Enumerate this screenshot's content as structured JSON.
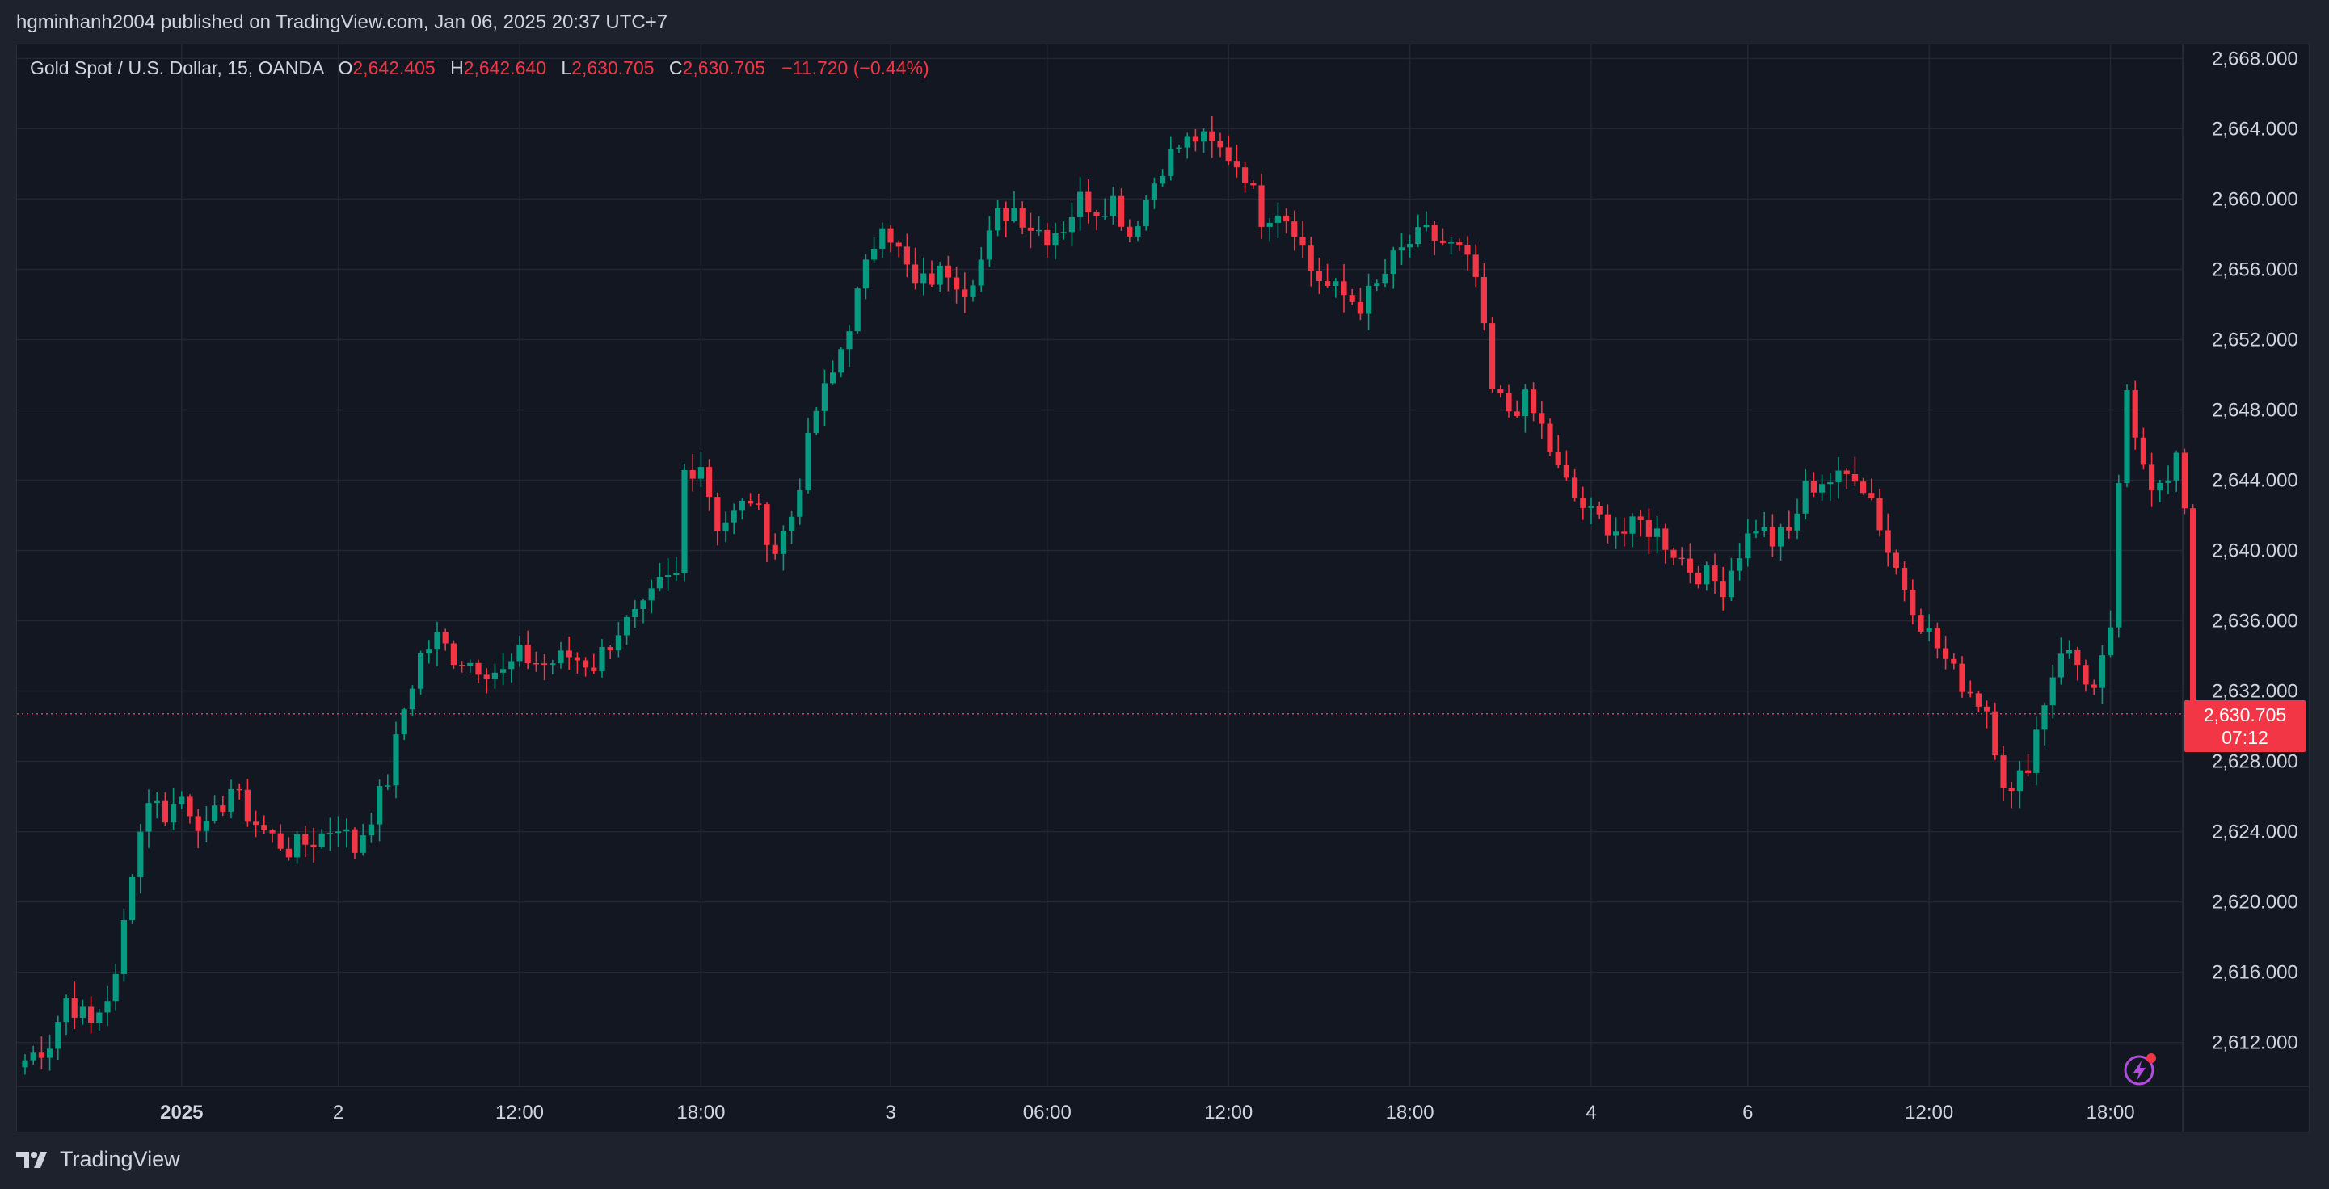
{
  "header": {
    "published": "hgminhanh2004 published on TradingView.com, Jan 06, 2025 20:37 UTC+7"
  },
  "legend": {
    "symbol": "Gold Spot / U.S. Dollar, 15, OANDA",
    "open_label": "O",
    "open": "2,642.405",
    "high_label": "H",
    "high": "2,642.640",
    "low_label": "L",
    "low": "2,630.705",
    "close_label": "C",
    "close": "2,630.705",
    "change": "−11.720 (−0.44%)"
  },
  "price_tag": {
    "price": "2,630.705",
    "countdown": "07:12"
  },
  "footer": {
    "brand": "TradingView"
  },
  "icons": {
    "logo": "tradingview-logo-icon",
    "flash": "flash-icon"
  },
  "colors": {
    "background": "#131722",
    "frame": "#1e222d",
    "grid": "#232732",
    "up": "#089981",
    "down": "#f23645",
    "text": "#d1d4dc",
    "accent": "#b44cdf"
  },
  "chart_data": {
    "type": "candlestick",
    "interval": "15",
    "ylim": [
      2609.5,
      2668.8
    ],
    "y_ticks": [
      "2,668.000",
      "2,664.000",
      "2,660.000",
      "2,656.000",
      "2,652.000",
      "2,648.000",
      "2,644.000",
      "2,640.000",
      "2,636.000",
      "2,632.000",
      "2,628.000",
      "2,624.000",
      "2,620.000",
      "2,616.000",
      "2,612.000"
    ],
    "y_tick_values": [
      2668,
      2664,
      2660,
      2656,
      2652,
      2648,
      2644,
      2640,
      2636,
      2632,
      2628,
      2624,
      2620,
      2616,
      2612
    ],
    "x_ticks": [
      {
        "label": "2025",
        "bar": 19,
        "bold": true
      },
      {
        "label": "2",
        "bar": 38
      },
      {
        "label": "12:00",
        "bar": 60
      },
      {
        "label": "18:00",
        "bar": 82
      },
      {
        "label": "3",
        "bar": 105
      },
      {
        "label": "06:00",
        "bar": 124
      },
      {
        "label": "12:00",
        "bar": 146
      },
      {
        "label": "18:00",
        "bar": 168
      },
      {
        "label": "4",
        "bar": 190
      },
      {
        "label": "6",
        "bar": 209
      },
      {
        "label": "12:00",
        "bar": 231
      },
      {
        "label": "18:00",
        "bar": 253
      }
    ],
    "last_price": 2630.705,
    "anchors": [
      [
        0,
        2611.0
      ],
      [
        3,
        2612.0
      ],
      [
        5,
        2614.5
      ],
      [
        8,
        2613.0
      ],
      [
        11,
        2615.5
      ],
      [
        13,
        2622.0
      ],
      [
        15,
        2626.0
      ],
      [
        17,
        2625.0
      ],
      [
        19,
        2626.0
      ],
      [
        22,
        2624.0
      ],
      [
        25,
        2626.5
      ],
      [
        27,
        2625.0
      ],
      [
        29,
        2624.0
      ],
      [
        32,
        2623.0
      ],
      [
        35,
        2623.5
      ],
      [
        38,
        2624.5
      ],
      [
        40,
        2623.0
      ],
      [
        42,
        2625.0
      ],
      [
        44,
        2627.0
      ],
      [
        46,
        2631.0
      ],
      [
        48,
        2634.0
      ],
      [
        50,
        2635.0
      ],
      [
        52,
        2634.0
      ],
      [
        55,
        2633.5
      ],
      [
        58,
        2633.0
      ],
      [
        60,
        2634.0
      ],
      [
        63,
        2633.5
      ],
      [
        66,
        2634.0
      ],
      [
        69,
        2633.5
      ],
      [
        72,
        2635.5
      ],
      [
        75,
        2636.5
      ],
      [
        77,
        2638.0
      ],
      [
        79,
        2638.5
      ],
      [
        80,
        2644.5
      ],
      [
        82,
        2645.0
      ],
      [
        84,
        2641.5
      ],
      [
        86,
        2642.0
      ],
      [
        88,
        2643.0
      ],
      [
        90,
        2641.0
      ],
      [
        91,
        2640.0
      ],
      [
        93,
        2642.0
      ],
      [
        95,
        2646.0
      ],
      [
        96,
        2648.0
      ],
      [
        98,
        2650.0
      ],
      [
        100,
        2653.0
      ],
      [
        102,
        2656.0
      ],
      [
        104,
        2659.0
      ],
      [
        106,
        2657.0
      ],
      [
        108,
        2655.0
      ],
      [
        110,
        2655.5
      ],
      [
        112,
        2656.0
      ],
      [
        114,
        2655.0
      ],
      [
        116,
        2656.5
      ],
      [
        118,
        2659.0
      ],
      [
        120,
        2659.5
      ],
      [
        122,
        2658.5
      ],
      [
        124,
        2658.0
      ],
      [
        126,
        2658.5
      ],
      [
        128,
        2660.0
      ],
      [
        130,
        2659.5
      ],
      [
        132,
        2660.0
      ],
      [
        134,
        2658.0
      ],
      [
        136,
        2660.0
      ],
      [
        138,
        2662.0
      ],
      [
        140,
        2663.0
      ],
      [
        142,
        2663.5
      ],
      [
        144,
        2663.0
      ],
      [
        146,
        2662.5
      ],
      [
        148,
        2661.5
      ],
      [
        150,
        2659.0
      ],
      [
        152,
        2659.5
      ],
      [
        154,
        2658.5
      ],
      [
        156,
        2656.0
      ],
      [
        158,
        2655.0
      ],
      [
        160,
        2654.5
      ],
      [
        162,
        2654.0
      ],
      [
        164,
        2655.0
      ],
      [
        166,
        2656.5
      ],
      [
        168,
        2657.5
      ],
      [
        170,
        2658.0
      ],
      [
        172,
        2657.5
      ],
      [
        174,
        2657.0
      ],
      [
        176,
        2655.5
      ],
      [
        178,
        2649.0
      ],
      [
        180,
        2648.0
      ],
      [
        182,
        2648.5
      ],
      [
        184,
        2647.0
      ],
      [
        186,
        2644.5
      ],
      [
        188,
        2643.0
      ],
      [
        190,
        2642.0
      ],
      [
        192,
        2641.5
      ],
      [
        194,
        2641.0
      ],
      [
        196,
        2641.5
      ],
      [
        198,
        2641.0
      ],
      [
        200,
        2640.0
      ],
      [
        202,
        2639.0
      ],
      [
        204,
        2638.5
      ],
      [
        206,
        2638.0
      ],
      [
        208,
        2640.0
      ],
      [
        210,
        2641.5
      ],
      [
        212,
        2640.5
      ],
      [
        214,
        2641.0
      ],
      [
        216,
        2643.5
      ],
      [
        218,
        2644.0
      ],
      [
        220,
        2644.0
      ],
      [
        222,
        2644.5
      ],
      [
        224,
        2643.0
      ],
      [
        226,
        2640.0
      ],
      [
        228,
        2638.0
      ],
      [
        230,
        2636.0
      ],
      [
        232,
        2634.5
      ],
      [
        234,
        2633.0
      ],
      [
        236,
        2632.0
      ],
      [
        238,
        2631.0
      ],
      [
        240,
        2627.0
      ],
      [
        241,
        2626.0
      ],
      [
        243,
        2628.0
      ],
      [
        245,
        2631.5
      ],
      [
        247,
        2634.5
      ],
      [
        249,
        2633.5
      ],
      [
        251,
        2632.0
      ],
      [
        253,
        2635.0
      ],
      [
        254,
        2644.0
      ],
      [
        255,
        2648.5
      ],
      [
        256,
        2646.0
      ],
      [
        258,
        2644.0
      ],
      [
        260,
        2644.5
      ],
      [
        262,
        2646.0
      ],
      [
        263,
        2642.4
      ]
    ],
    "last_candle": {
      "open": 2642.405,
      "high": 2642.64,
      "low": 2630.705,
      "close": 2630.705
    }
  }
}
